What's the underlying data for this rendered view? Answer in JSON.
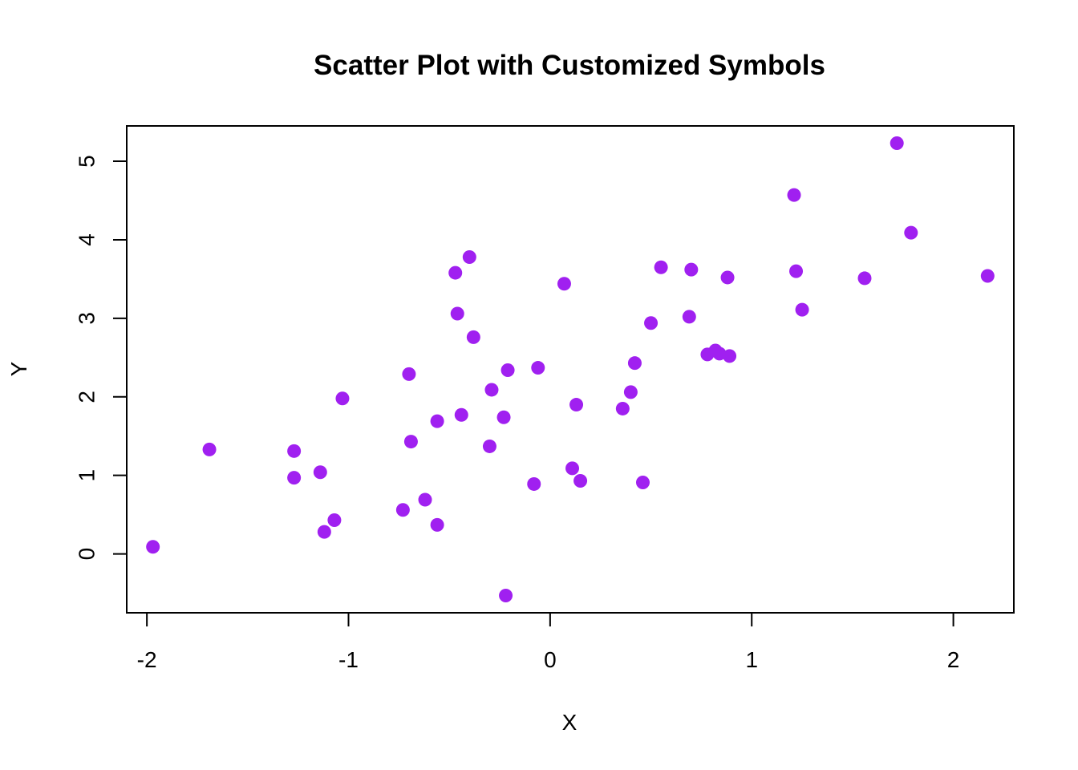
{
  "chart_data": {
    "type": "scatter",
    "title": "Scatter Plot with Customized Symbols",
    "xlabel": "X",
    "ylabel": "Y",
    "xlim": [
      -2.1,
      2.3
    ],
    "ylim": [
      -0.75,
      5.45
    ],
    "x_ticks": [
      -2,
      -1,
      0,
      1,
      2
    ],
    "y_ticks": [
      0,
      1,
      2,
      3,
      4,
      5
    ],
    "x_tick_labels": [
      "-2",
      "-1",
      "0",
      "1",
      "2"
    ],
    "y_tick_labels": [
      "0",
      "1",
      "2",
      "3",
      "4",
      "5"
    ],
    "grid": false,
    "marker": "filled-circle",
    "color": "#a020f0",
    "series": [
      {
        "points": [
          [
            -1.97,
            0.09
          ],
          [
            -1.69,
            1.33
          ],
          [
            -1.27,
            1.31
          ],
          [
            -1.27,
            0.97
          ],
          [
            -1.14,
            1.04
          ],
          [
            -1.12,
            0.28
          ],
          [
            -1.07,
            0.43
          ],
          [
            -1.03,
            1.98
          ],
          [
            -0.73,
            0.56
          ],
          [
            -0.7,
            2.29
          ],
          [
            -0.69,
            1.43
          ],
          [
            -0.62,
            0.69
          ],
          [
            -0.56,
            1.69
          ],
          [
            -0.56,
            0.37
          ],
          [
            -0.47,
            3.58
          ],
          [
            -0.46,
            3.06
          ],
          [
            -0.44,
            1.77
          ],
          [
            -0.4,
            3.78
          ],
          [
            -0.38,
            2.76
          ],
          [
            -0.3,
            1.37
          ],
          [
            -0.29,
            2.09
          ],
          [
            -0.23,
            1.74
          ],
          [
            -0.22,
            -0.53
          ],
          [
            -0.21,
            2.34
          ],
          [
            -0.08,
            0.89
          ],
          [
            -0.06,
            2.37
          ],
          [
            0.07,
            3.44
          ],
          [
            0.11,
            1.09
          ],
          [
            0.13,
            1.9
          ],
          [
            0.15,
            0.93
          ],
          [
            0.36,
            1.85
          ],
          [
            0.4,
            2.06
          ],
          [
            0.42,
            2.43
          ],
          [
            0.46,
            0.91
          ],
          [
            0.5,
            2.94
          ],
          [
            0.55,
            3.65
          ],
          [
            0.69,
            3.02
          ],
          [
            0.7,
            3.62
          ],
          [
            0.78,
            2.54
          ],
          [
            0.82,
            2.59
          ],
          [
            0.84,
            2.55
          ],
          [
            0.88,
            3.52
          ],
          [
            0.89,
            2.52
          ],
          [
            1.21,
            4.57
          ],
          [
            1.22,
            3.6
          ],
          [
            1.25,
            3.11
          ],
          [
            1.56,
            3.51
          ],
          [
            1.72,
            5.23
          ],
          [
            1.79,
            4.09
          ],
          [
            2.17,
            3.54
          ]
        ]
      }
    ]
  }
}
